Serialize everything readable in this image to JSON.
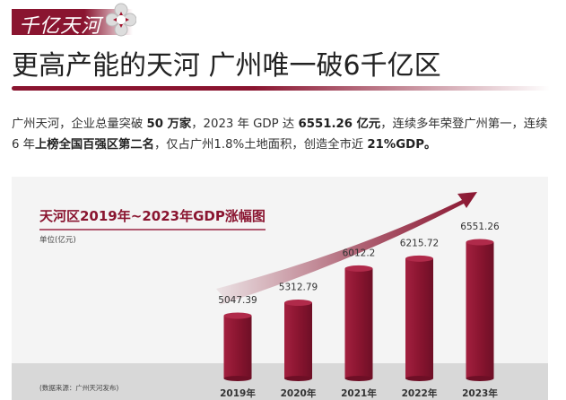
{
  "header": {
    "tag": "千亿天河",
    "title": "更高产能的天河 广州唯一破6千亿区"
  },
  "intro": {
    "p1": "广州天河，企业总量突破 ",
    "b1": "50 万家",
    "p2": "，2023 年 GDP 达 ",
    "b2": "6551.26 亿元",
    "p3": "，连续多年荣登广州第一，连续 6 年",
    "b3": "上榜全国百强区第二名",
    "p4": "，仅占广州1.8%土地面积，创造全市近 ",
    "b4": "21%GDP。"
  },
  "colors": {
    "accent": "#8a1530",
    "bar": "#8a1530",
    "panel": "#f4f4f4",
    "floor": "#d8d8d8"
  },
  "chart_data": {
    "type": "bar",
    "title": "天河区2019年~2023年GDP涨幅图",
    "unit": "单位(亿元)",
    "categories": [
      "2019年",
      "2020年",
      "2021年",
      "2022年",
      "2023年"
    ],
    "values": [
      5047.39,
      5312.79,
      6012.2,
      6215.72,
      6551.26
    ],
    "value_labels": [
      "5047.39",
      "5312.79",
      "6012.2",
      "6215.72",
      "6551.26"
    ],
    "source": "(数据来源：广州天河发布)",
    "grid": false,
    "annotation": "upward-trend-arrow"
  }
}
